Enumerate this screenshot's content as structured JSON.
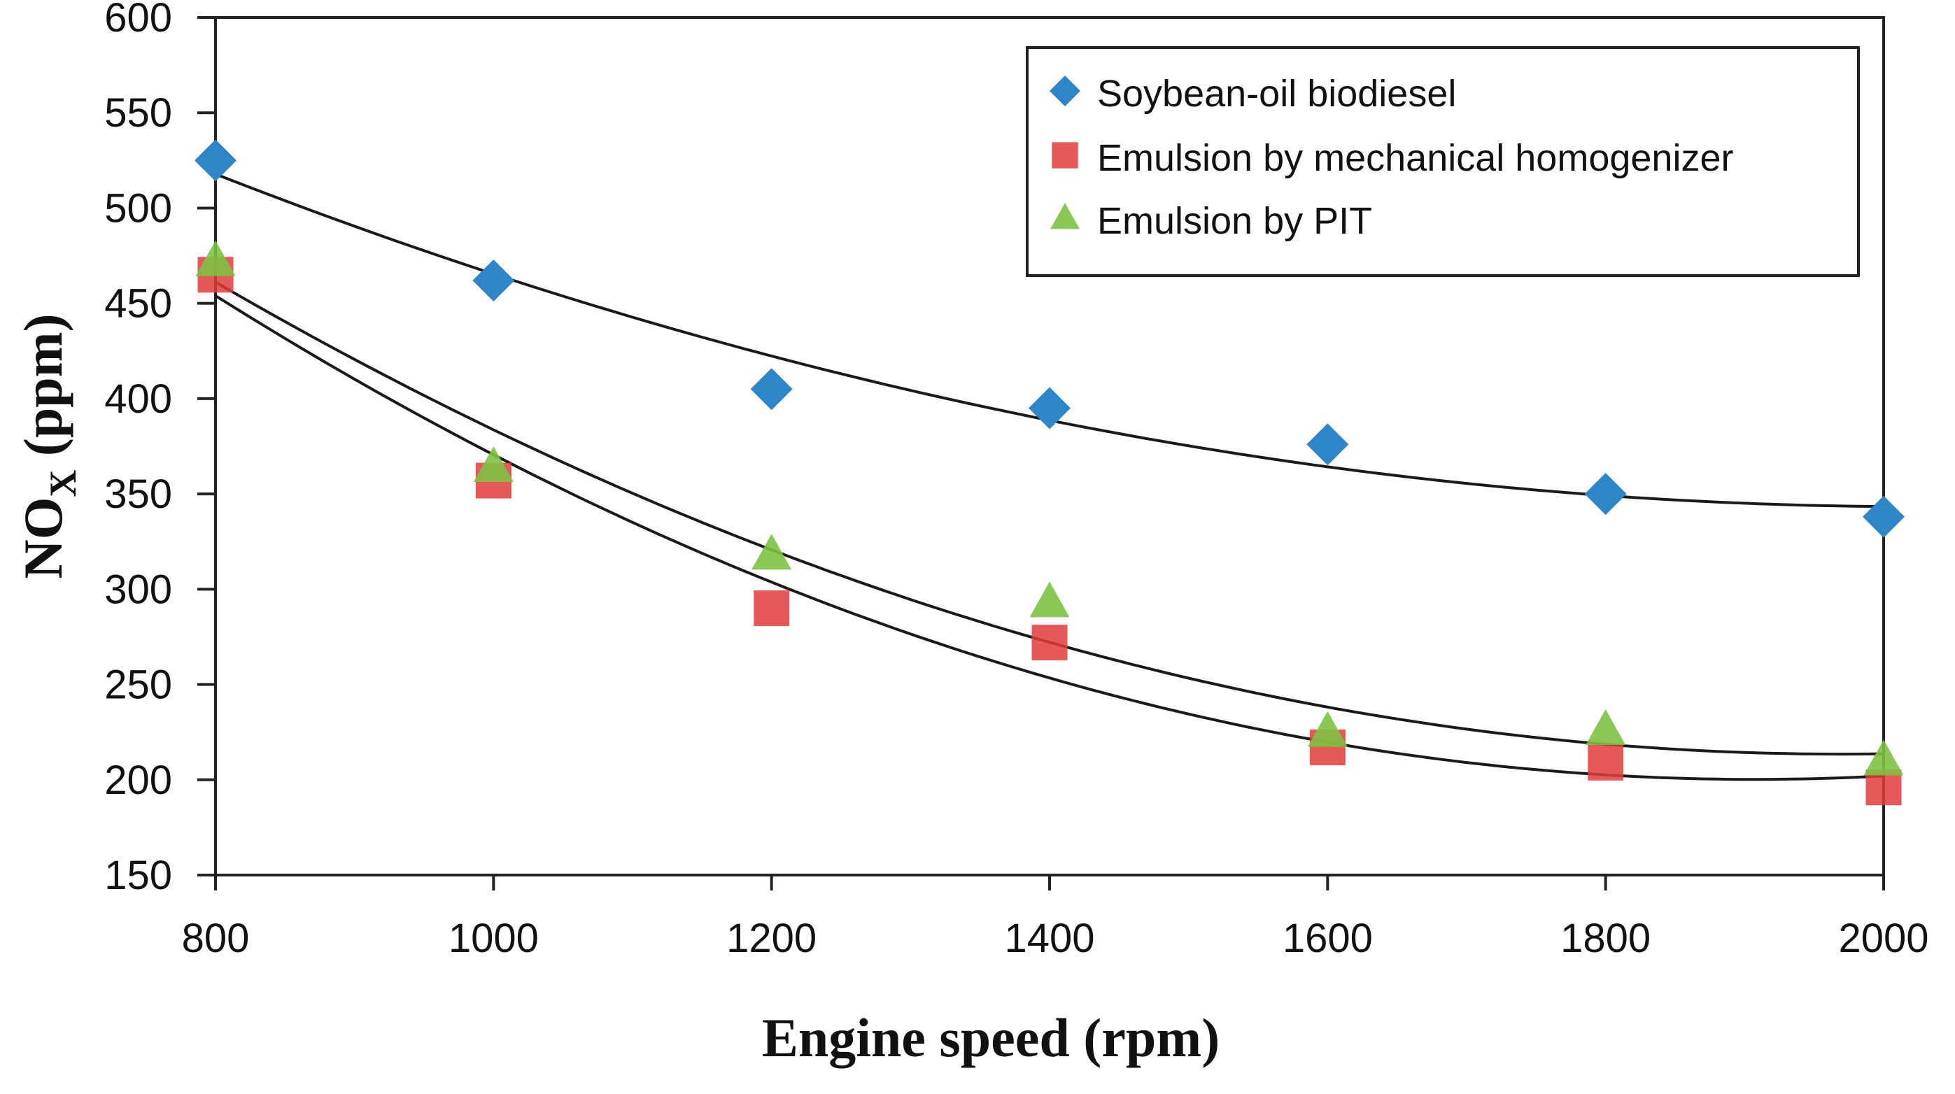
{
  "chart_data": {
    "type": "scatter",
    "title": "",
    "xlabel": "Engine speed (rpm)",
    "ylabel": {
      "main": "NO",
      "sub": "X",
      "unit": " (ppm)"
    },
    "xlim": [
      800,
      2000
    ],
    "ylim": [
      150,
      600
    ],
    "x_ticks": [
      800,
      1000,
      1200,
      1400,
      1600,
      1800,
      2000
    ],
    "y_ticks": [
      150,
      200,
      250,
      300,
      350,
      400,
      450,
      500,
      550,
      600
    ],
    "grid": false,
    "legend_position": "top-right",
    "series": [
      {
        "name": "Soybean-oil biodiesel",
        "marker": "diamond",
        "color": "#2E86C8",
        "x": [
          800,
          1000,
          1200,
          1400,
          1600,
          1800,
          2000
        ],
        "y": [
          525,
          462,
          405,
          395,
          376,
          350,
          338
        ],
        "trend": "quadratic"
      },
      {
        "name": "Emulsion by mechanical homogenizer",
        "marker": "square",
        "color": "#E33B3B",
        "x": [
          800,
          1000,
          1200,
          1400,
          1600,
          1800,
          2000
        ],
        "y": [
          465,
          357,
          290,
          272,
          217,
          209,
          196
        ],
        "trend": "quadratic"
      },
      {
        "name": "Emulsion by PIT",
        "marker": "triangle",
        "color": "#7DC242",
        "x": [
          800,
          1000,
          1200,
          1400,
          1600,
          1800,
          2000
        ],
        "y": [
          472,
          364,
          318,
          293,
          225,
          226,
          210
        ],
        "trend": "quadratic"
      }
    ]
  }
}
